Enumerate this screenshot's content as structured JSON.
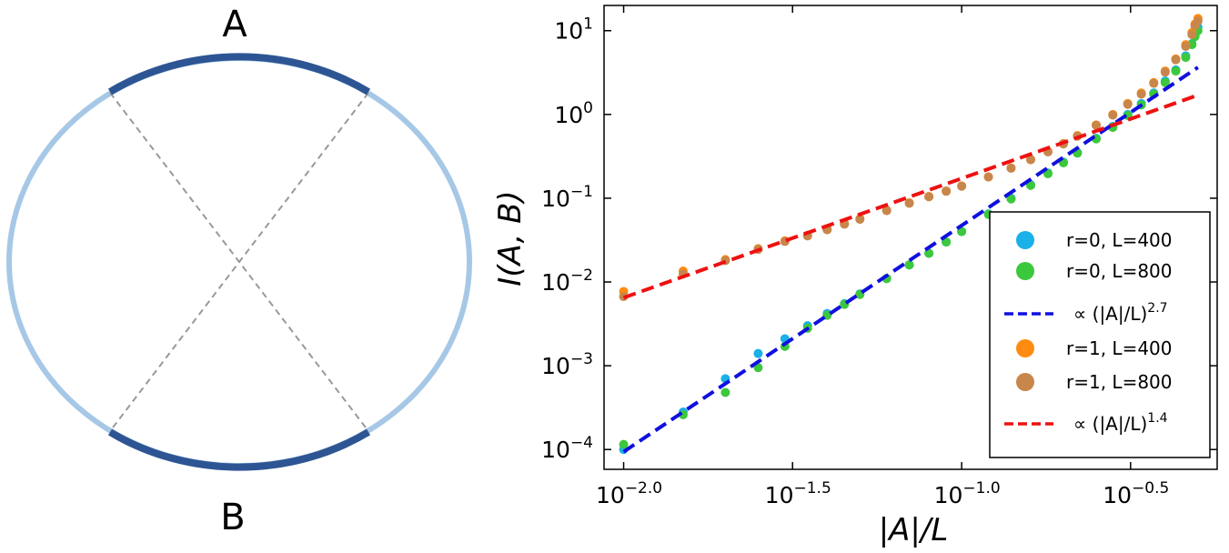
{
  "diagram": {
    "label_a": "A",
    "label_b": "B",
    "colors": {
      "region": "#2e5593",
      "ring": "#a6c8e6",
      "chord": "#999999"
    }
  },
  "chart_data": {
    "type": "scatter",
    "title": "",
    "xlabel": "|A|/L",
    "ylabel": "I(A, B)",
    "xscale": "log",
    "yscale": "log",
    "xlim": [
      0.00875,
      0.57
    ],
    "ylim": [
      5.8e-05,
      20
    ],
    "grid": false,
    "legend_placement": "lower-right",
    "x_ticks": [
      {
        "value": 0.01,
        "base": "10",
        "exp": "−2.0"
      },
      {
        "value": 0.0316,
        "base": "10",
        "exp": "−1.5"
      },
      {
        "value": 0.1,
        "base": "10",
        "exp": "−1.0"
      },
      {
        "value": 0.316,
        "base": "10",
        "exp": "−0.5"
      }
    ],
    "y_ticks": [
      {
        "value": 0.0001,
        "base": "10",
        "exp": "−4"
      },
      {
        "value": 0.001,
        "base": "10",
        "exp": "−3"
      },
      {
        "value": 0.01,
        "base": "10",
        "exp": "−2"
      },
      {
        "value": 0.1,
        "base": "10",
        "exp": "−1"
      },
      {
        "value": 1,
        "base": "10",
        "exp": "0"
      },
      {
        "value": 10,
        "base": "10",
        "exp": "1"
      }
    ],
    "series": [
      {
        "name": "r=0, L=400",
        "kind": "points",
        "color": "#1ab0e8",
        "x": [
          0.01,
          0.015,
          0.02,
          0.025,
          0.03,
          0.035,
          0.04,
          0.045,
          0.05,
          0.06,
          0.07,
          0.08,
          0.09,
          0.1,
          0.12,
          0.14,
          0.16,
          0.18,
          0.2,
          0.22,
          0.25,
          0.28,
          0.31,
          0.34,
          0.37,
          0.4,
          0.43,
          0.46,
          0.48,
          0.49,
          0.5
        ],
        "y": [
          0.0001,
          0.00028,
          0.0007,
          0.0014,
          0.0021,
          0.003,
          0.0042,
          0.0055,
          0.0072,
          0.011,
          0.016,
          0.022,
          0.03,
          0.04,
          0.065,
          0.1,
          0.145,
          0.2,
          0.27,
          0.35,
          0.52,
          0.72,
          1.0,
          1.35,
          1.8,
          2.5,
          3.4,
          5.0,
          7.0,
          9.0,
          11.0
        ]
      },
      {
        "name": "r=0, L=800",
        "kind": "points",
        "color": "#3cc83c",
        "x": [
          0.01,
          0.015,
          0.02,
          0.025,
          0.03,
          0.035,
          0.04,
          0.045,
          0.05,
          0.06,
          0.07,
          0.08,
          0.09,
          0.1,
          0.12,
          0.14,
          0.16,
          0.18,
          0.2,
          0.22,
          0.25,
          0.28,
          0.31,
          0.34,
          0.37,
          0.4,
          0.43,
          0.46,
          0.48,
          0.49,
          0.5
        ],
        "y": [
          0.000115,
          0.00026,
          0.00048,
          0.00095,
          0.0017,
          0.0028,
          0.004,
          0.0054,
          0.0071,
          0.011,
          0.016,
          0.022,
          0.03,
          0.04,
          0.064,
          0.098,
          0.142,
          0.196,
          0.265,
          0.345,
          0.51,
          0.7,
          0.97,
          1.3,
          1.75,
          2.4,
          3.3,
          4.8,
          6.8,
          8.5,
          10.0
        ]
      },
      {
        "name": "∝ (|A|/L)",
        "name_exp": "2.7",
        "kind": "dashed-line",
        "color": "#1010e0",
        "x": [
          0.01,
          0.5
        ],
        "y": [
          9.4e-05,
          3.65
        ]
      },
      {
        "name": "r=1, L=400",
        "kind": "points",
        "color": "#ff8c10",
        "x": [
          0.01,
          0.015,
          0.02,
          0.025,
          0.03,
          0.035,
          0.04,
          0.045,
          0.05,
          0.06,
          0.07,
          0.08,
          0.09,
          0.1,
          0.12,
          0.14,
          0.16,
          0.18,
          0.2,
          0.22,
          0.25,
          0.28,
          0.31,
          0.34,
          0.37,
          0.4,
          0.43,
          0.46,
          0.48,
          0.49,
          0.5
        ],
        "y": [
          0.0077,
          0.0135,
          0.0185,
          0.025,
          0.031,
          0.036,
          0.043,
          0.05,
          0.057,
          0.072,
          0.088,
          0.105,
          0.122,
          0.14,
          0.18,
          0.23,
          0.29,
          0.36,
          0.45,
          0.56,
          0.75,
          1.0,
          1.35,
          1.8,
          2.4,
          3.3,
          4.6,
          6.8,
          9.5,
          12.0,
          14.0
        ]
      },
      {
        "name": "r=1, L=800",
        "kind": "points",
        "color": "#c8864a",
        "x": [
          0.01,
          0.015,
          0.02,
          0.025,
          0.03,
          0.035,
          0.04,
          0.045,
          0.05,
          0.06,
          0.07,
          0.08,
          0.09,
          0.1,
          0.12,
          0.14,
          0.16,
          0.18,
          0.2,
          0.22,
          0.25,
          0.28,
          0.31,
          0.34,
          0.37,
          0.4,
          0.43,
          0.46,
          0.48,
          0.49,
          0.5
        ],
        "y": [
          0.0067,
          0.0125,
          0.018,
          0.0245,
          0.0305,
          0.0355,
          0.042,
          0.049,
          0.056,
          0.071,
          0.087,
          0.104,
          0.121,
          0.139,
          0.179,
          0.228,
          0.288,
          0.357,
          0.445,
          0.55,
          0.74,
          0.98,
          1.32,
          1.75,
          2.35,
          3.2,
          4.5,
          6.5,
          9.0,
          11.5,
          13.0
        ]
      },
      {
        "name": "∝ (|A|/L)",
        "name_exp": "1.4",
        "kind": "dashed-line",
        "color": "#ee1111",
        "x": [
          0.01,
          0.5
        ],
        "y": [
          0.0065,
          1.7
        ]
      }
    ]
  }
}
